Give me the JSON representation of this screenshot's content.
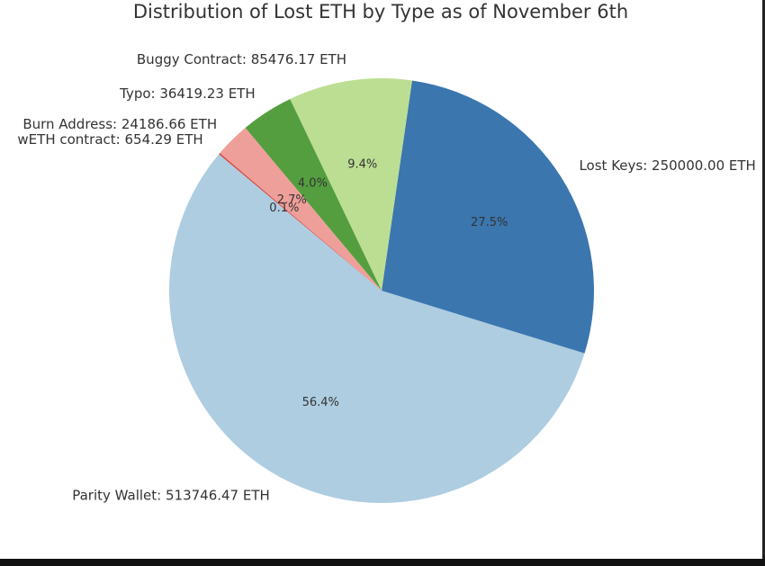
{
  "chart_data": {
    "type": "pie",
    "title": "Distribution of Lost ETH by Type as of November 6th",
    "categories": [
      "Parity Wallet: 513746.47 ETH",
      "Lost Keys: 250000.00 ETH",
      "Buggy Contract: 85476.17 ETH",
      "Typo: 36419.23 ETH",
      "Burn Address: 24186.66 ETH",
      "wETH contract: 654.29 ETH"
    ],
    "values": [
      56.4,
      27.5,
      9.4,
      4.0,
      2.7,
      0.1
    ],
    "value_labels": [
      "56.4%",
      "27.5%",
      "9.4%",
      "4.0%",
      "2.7%",
      "0.1%"
    ],
    "colors": [
      "#aecde1",
      "#3b76af",
      "#bcde93",
      "#549e3f",
      "#ef9f9a",
      "#d9403a"
    ]
  }
}
